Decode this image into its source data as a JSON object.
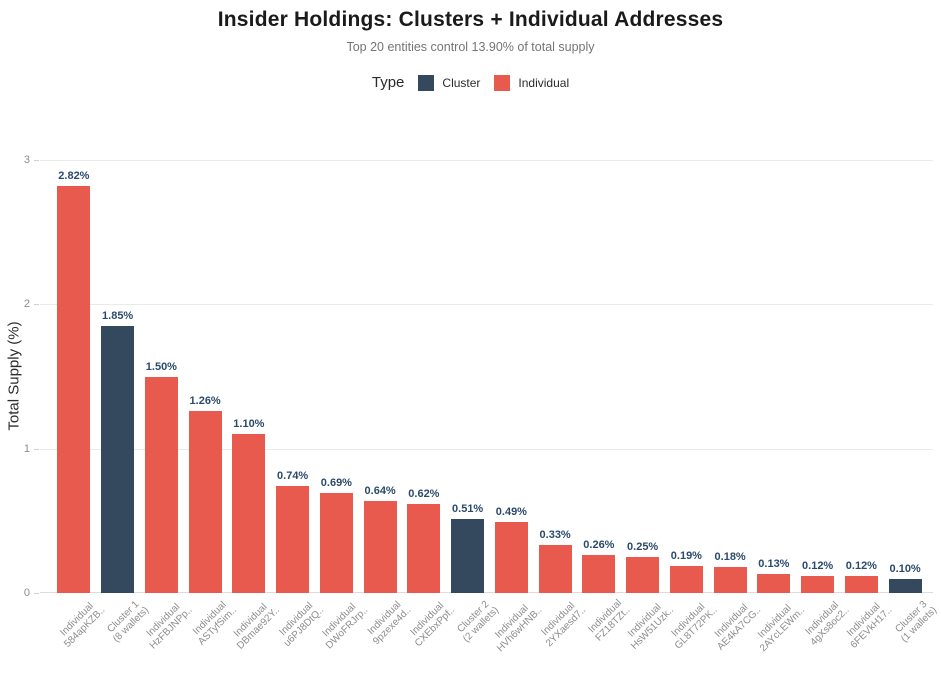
{
  "title": "Insider Holdings: Clusters + Individual Addresses",
  "subtitle": "Top 20 entities control 13.90% of total supply",
  "legend": {
    "title": "Type",
    "entries": [
      {
        "label": "Cluster",
        "color": "#34495E"
      },
      {
        "label": "Individual",
        "color": "#E8594E"
      }
    ]
  },
  "y_axis": {
    "label": "Total Supply (%)",
    "tick_labels": [
      "0",
      "1",
      "2",
      "3"
    ]
  },
  "chart_data": {
    "type": "bar",
    "title": "Insider Holdings: Clusters + Individual Addresses",
    "subtitle": "Top 20 entities control 13.90% of total supply",
    "ylabel": "Total Supply (%)",
    "xlabel": "",
    "ylim": [
      0,
      3
    ],
    "yticks": [
      0,
      1,
      2,
      3
    ],
    "grid": true,
    "legend_position": "top",
    "colors": {
      "cluster": "#34495E",
      "individual": "#E8594E"
    },
    "bars": [
      {
        "line1": "Individual",
        "line2": "584apKZB..",
        "type": "individual",
        "value": 2.82,
        "label": "2.82%"
      },
      {
        "line1": "Cluster 1",
        "line2": "(8 wallets)",
        "type": "cluster",
        "value": 1.85,
        "label": "1.85%"
      },
      {
        "line1": "Individual",
        "line2": "HzFBJNPp..",
        "type": "individual",
        "value": 1.5,
        "label": "1.50%"
      },
      {
        "line1": "Individual",
        "line2": "ASTyfSim..",
        "type": "individual",
        "value": 1.26,
        "label": "1.26%"
      },
      {
        "line1": "Individual",
        "line2": "DBmae92Y..",
        "type": "individual",
        "value": 1.1,
        "label": "1.10%"
      },
      {
        "line1": "Individual",
        "line2": "u6PJ8DtQ..",
        "type": "individual",
        "value": 0.74,
        "label": "0.74%"
      },
      {
        "line1": "Individual",
        "line2": "DWoFRJrp..",
        "type": "individual",
        "value": 0.69,
        "label": "0.69%"
      },
      {
        "line1": "Individual",
        "line2": "9pzexe4d..",
        "type": "individual",
        "value": 0.64,
        "label": "0.64%"
      },
      {
        "line1": "Individual",
        "line2": "CXEbxPpf..",
        "type": "individual",
        "value": 0.62,
        "label": "0.62%"
      },
      {
        "line1": "Cluster 2",
        "line2": "(2 wallets)",
        "type": "cluster",
        "value": 0.51,
        "label": "0.51%"
      },
      {
        "line1": "Individual",
        "line2": "HVh6wHNB..",
        "type": "individual",
        "value": 0.49,
        "label": "0.49%"
      },
      {
        "line1": "Individual",
        "line2": "2YXaesd7..",
        "type": "individual",
        "value": 0.33,
        "label": "0.33%"
      },
      {
        "line1": "Individual",
        "line2": "FZ18TZt..",
        "type": "individual",
        "value": 0.26,
        "label": "0.26%"
      },
      {
        "line1": "Individual",
        "line2": "HsW51Uzk..",
        "type": "individual",
        "value": 0.25,
        "label": "0.25%"
      },
      {
        "line1": "Individual",
        "line2": "GL8T72PK..",
        "type": "individual",
        "value": 0.19,
        "label": "0.19%"
      },
      {
        "line1": "Individual",
        "line2": "AE4kA7CG..",
        "type": "individual",
        "value": 0.18,
        "label": "0.18%"
      },
      {
        "line1": "Individual",
        "line2": "2AYcLEWm..",
        "type": "individual",
        "value": 0.13,
        "label": "0.13%"
      },
      {
        "line1": "Individual",
        "line2": "4gXs8oc2..",
        "type": "individual",
        "value": 0.12,
        "label": "0.12%"
      },
      {
        "line1": "Individual",
        "line2": "6FEVkH17..",
        "type": "individual",
        "value": 0.12,
        "label": "0.12%"
      },
      {
        "line1": "Cluster 3",
        "line2": "(1 wallets)",
        "type": "cluster",
        "value": 0.1,
        "label": "0.10%"
      }
    ]
  }
}
